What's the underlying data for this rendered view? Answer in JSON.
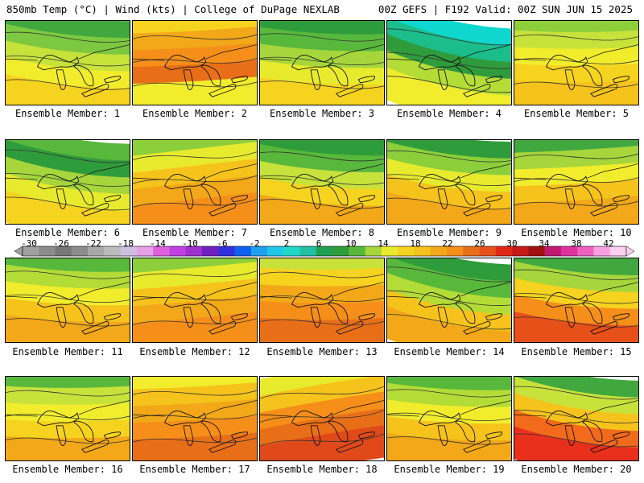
{
  "header": {
    "left_title": "850mb Temp (°C) | Wind (kts) | College of DuPage NEXLAB",
    "right_title": "00Z GEFS | F192 Valid: 00Z SUN JUN 15 2025"
  },
  "members": [
    {
      "label": "Ensemble Member: 1",
      "colors": [
        "#41a83f",
        "#7cc840",
        "#c8e23c",
        "#f2ed2c",
        "#f5d31f"
      ],
      "tilt": -10
    },
    {
      "label": "Ensemble Member: 2",
      "colors": [
        "#f5d31f",
        "#f2a818",
        "#f58f1a",
        "#e86f18",
        "#f2ed2c"
      ],
      "tilt": 5
    },
    {
      "label": "Ensemble Member: 3",
      "colors": [
        "#2f9c3c",
        "#58b83b",
        "#a6d63b",
        "#e8eb2d",
        "#f5d31f"
      ],
      "tilt": -5
    },
    {
      "label": "Ensemble Member: 4",
      "colors": [
        "#0fd6cf",
        "#1bbd8b",
        "#2f9c3c",
        "#b4dc37",
        "#f2ed2c"
      ],
      "tilt": -20
    },
    {
      "label": "Ensemble Member: 5",
      "colors": [
        "#8ccf3b",
        "#c8e23c",
        "#f2ed2c",
        "#f5d31f",
        "#f5c31c"
      ],
      "tilt": 0
    },
    {
      "label": "Ensemble Member: 6",
      "colors": [
        "#58b83b",
        "#2f9c3c",
        "#a6d63b",
        "#e8eb2d",
        "#f5d31f"
      ],
      "tilt": -15
    },
    {
      "label": "Ensemble Member: 7",
      "colors": [
        "#8ccf3b",
        "#e8eb2d",
        "#f5c31c",
        "#f2a818",
        "#f58f1a"
      ],
      "tilt": 10
    },
    {
      "label": "Ensemble Member: 8",
      "colors": [
        "#2f9c3c",
        "#58b83b",
        "#c8e23c",
        "#f5d31f",
        "#f2a818"
      ],
      "tilt": -8
    },
    {
      "label": "Ensemble Member: 9",
      "colors": [
        "#2f9c3c",
        "#8ccf3b",
        "#e8eb2d",
        "#f5c31c",
        "#f2a818"
      ],
      "tilt": -12
    },
    {
      "label": "Ensemble Member: 10",
      "colors": [
        "#41a83f",
        "#a6d63b",
        "#f2ed2c",
        "#f5c31c",
        "#f2a818"
      ],
      "tilt": 5
    },
    {
      "label": "Ensemble Member: 11",
      "colors": [
        "#58b83b",
        "#b4dc37",
        "#f2ed2c",
        "#f5c31c",
        "#f2a818"
      ],
      "tilt": -5
    },
    {
      "label": "Ensemble Member: 12",
      "colors": [
        "#8ccf3b",
        "#e8eb2d",
        "#f5c31c",
        "#f2a818",
        "#f58f1a"
      ],
      "tilt": 8
    },
    {
      "label": "Ensemble Member: 13",
      "colors": [
        "#c8e23c",
        "#f5d31f",
        "#f2a818",
        "#f58f1a",
        "#e86f18"
      ],
      "tilt": 0
    },
    {
      "label": "Ensemble Member: 14",
      "colors": [
        "#2f9c3c",
        "#58b83b",
        "#b4dc37",
        "#f5c31c",
        "#f2a818"
      ],
      "tilt": -18
    },
    {
      "label": "Ensemble Member: 15",
      "colors": [
        "#41a83f",
        "#a6d63b",
        "#f5d31f",
        "#f58f1a",
        "#e8501a"
      ],
      "tilt": -10
    },
    {
      "label": "Ensemble Member: 16",
      "colors": [
        "#58b83b",
        "#c8e23c",
        "#f2ed2c",
        "#f5d31f",
        "#f2a818"
      ],
      "tilt": 0
    },
    {
      "label": "Ensemble Member: 17",
      "colors": [
        "#f2ed2c",
        "#f5c31c",
        "#f2a818",
        "#f58f1a",
        "#e86f18"
      ],
      "tilt": 5
    },
    {
      "label": "Ensemble Member: 18",
      "colors": [
        "#e8eb2d",
        "#f5c31c",
        "#f58f1a",
        "#e86f18",
        "#e04a1a"
      ],
      "tilt": 15
    },
    {
      "label": "Ensemble Member: 19",
      "colors": [
        "#58b83b",
        "#b4dc37",
        "#f2ed2c",
        "#f5c31c",
        "#f2a818"
      ],
      "tilt": -5
    },
    {
      "label": "Ensemble Member: 20",
      "colors": [
        "#41a83f",
        "#c8e23c",
        "#f5c31c",
        "#f26a1c",
        "#e8301c"
      ],
      "tilt": -15
    }
  ],
  "colorbar": {
    "labels": [
      "-30",
      "-26",
      "-22",
      "-18",
      "-14",
      "-10",
      "-6",
      "-2",
      "2",
      "6",
      "10",
      "14",
      "18",
      "22",
      "26",
      "30",
      "34",
      "38",
      "42"
    ],
    "colors": [
      "#a0a0a0",
      "#8c8c8c",
      "#787878",
      "#8c8c8c",
      "#a8a8a8",
      "#bcbcbc",
      "#d0c0e0",
      "#e8a0e8",
      "#e060e0",
      "#c040e0",
      "#a030d0",
      "#7020c0",
      "#3030e0",
      "#1060f0",
      "#20a0f0",
      "#20c8e8",
      "#20d8c8",
      "#20c0a0",
      "#20a050",
      "#2f9c3c",
      "#58b83b",
      "#a6d63b",
      "#e8eb2d",
      "#f5d31f",
      "#f5c31c",
      "#f2a818",
      "#f58f1a",
      "#e86f18",
      "#e8501a",
      "#e02818",
      "#c81818",
      "#a01010",
      "#c01870",
      "#e030a0",
      "#f060c0",
      "#f8a0e0",
      "#fcd0f0"
    ]
  }
}
